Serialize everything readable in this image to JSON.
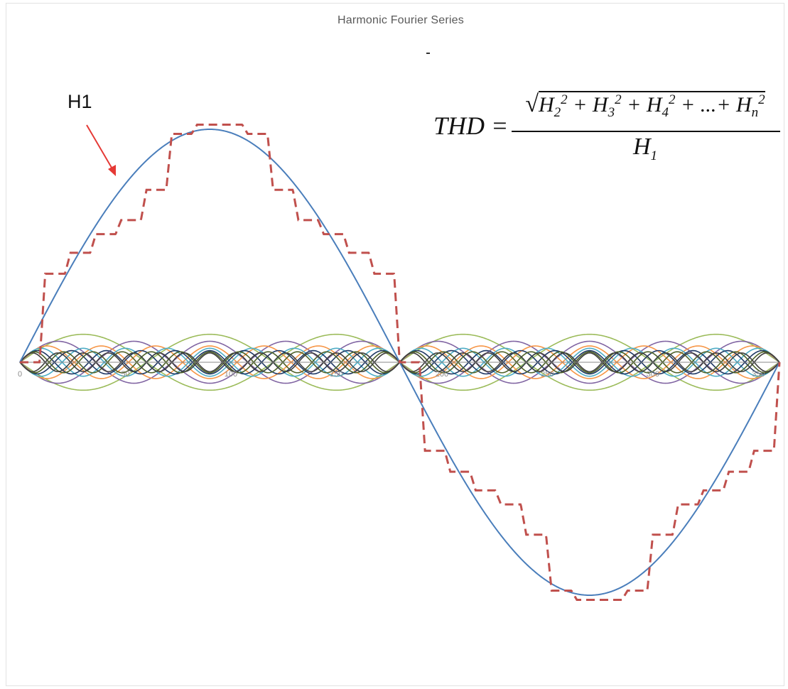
{
  "chart_data": {
    "type": "line",
    "title": "Harmonic Fourier Series",
    "annotation_label": "H1",
    "formula": {
      "lhs": "THD =",
      "numerator_terms": [
        "H",
        "2",
        "2",
        " + H",
        "3",
        "2",
        " + H",
        "4",
        "2",
        " + ...+ H",
        "n",
        "2"
      ],
      "denominator": "H",
      "denominator_sub": "1"
    },
    "x_ticks": [
      "0",
      "50",
      "100",
      "150",
      "200",
      "250",
      "300",
      "350"
    ],
    "xlim": [
      0,
      360
    ],
    "ylim": [
      -1.05,
      1.05
    ],
    "series": [
      {
        "name": "H1",
        "kind": "fundamental",
        "harmonic": 1,
        "amplitude": 1.0,
        "color": "#4a7ebb"
      },
      {
        "kind": "harmonic",
        "harmonic": 3,
        "amplitude": 0.12,
        "color": "#9bbb59"
      },
      {
        "kind": "harmonic",
        "harmonic": 5,
        "amplitude": 0.09,
        "color": "#8064a2"
      },
      {
        "kind": "harmonic",
        "harmonic": 7,
        "amplitude": 0.07,
        "color": "#f79646"
      },
      {
        "kind": "harmonic",
        "harmonic": 9,
        "amplitude": 0.06,
        "color": "#4bacc6"
      },
      {
        "kind": "harmonic",
        "harmonic": 11,
        "amplitude": 0.05,
        "color": "#1f3864"
      },
      {
        "kind": "harmonic",
        "harmonic": 13,
        "amplitude": 0.045,
        "color": "#4f6228"
      },
      {
        "kind": "harmonic",
        "harmonic": 15,
        "amplitude": 0.04,
        "color": "#3f3f3f"
      },
      {
        "kind": "sum",
        "color": "#c0504d"
      }
    ]
  }
}
